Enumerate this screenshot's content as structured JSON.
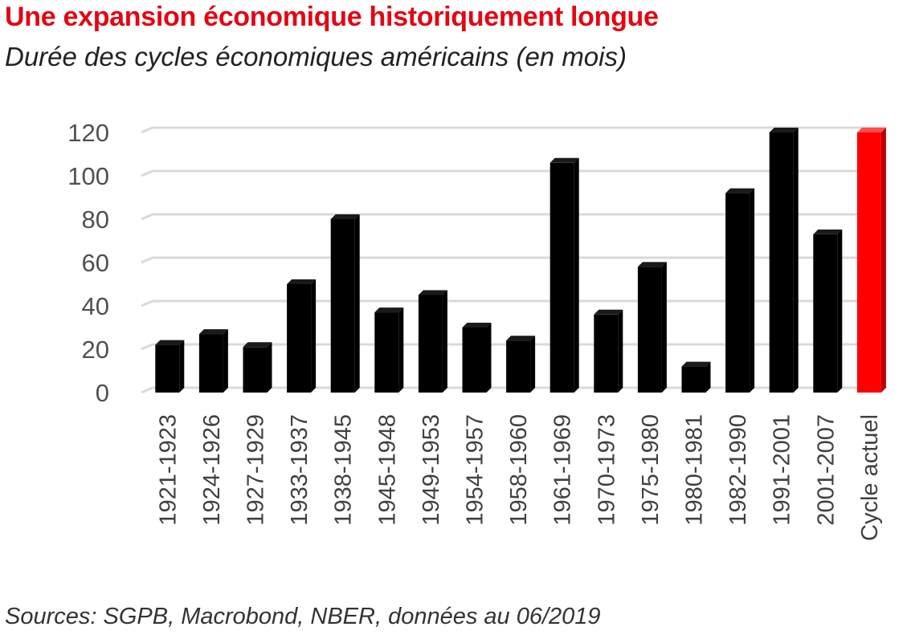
{
  "title": "Une expansion économique historiquement longue",
  "subtitle": "Durée des cycles économiques américains (en mois)",
  "source": "Sources: SGPB, Macrobond, NBER, données au 06/2019",
  "colors": {
    "title": "#e30613",
    "bar": "#000000",
    "highlight": "#ff0000",
    "grid": "#d9d9d9"
  },
  "chart_data": {
    "type": "bar",
    "categories": [
      "1921-1923",
      "1924-1926",
      "1927-1929",
      "1933-1937",
      "1938-1945",
      "1945-1948",
      "1949-1953",
      "1954-1957",
      "1958-1960",
      "1961-1969",
      "1970-1973",
      "1975-1980",
      "1980-1981",
      "1982-1990",
      "1991-2001",
      "2001-2007",
      "Cycle actuel"
    ],
    "values": [
      22,
      27,
      21,
      50,
      80,
      37,
      45,
      30,
      24,
      106,
      36,
      58,
      12,
      92,
      120,
      73,
      120
    ],
    "highlight_index": 16,
    "xlabel": "",
    "ylabel": "",
    "ylim": [
      0,
      120
    ],
    "yticks": [
      0,
      20,
      40,
      60,
      80,
      100,
      120
    ],
    "grid": true,
    "legend": "none",
    "style": "3d-columns"
  }
}
